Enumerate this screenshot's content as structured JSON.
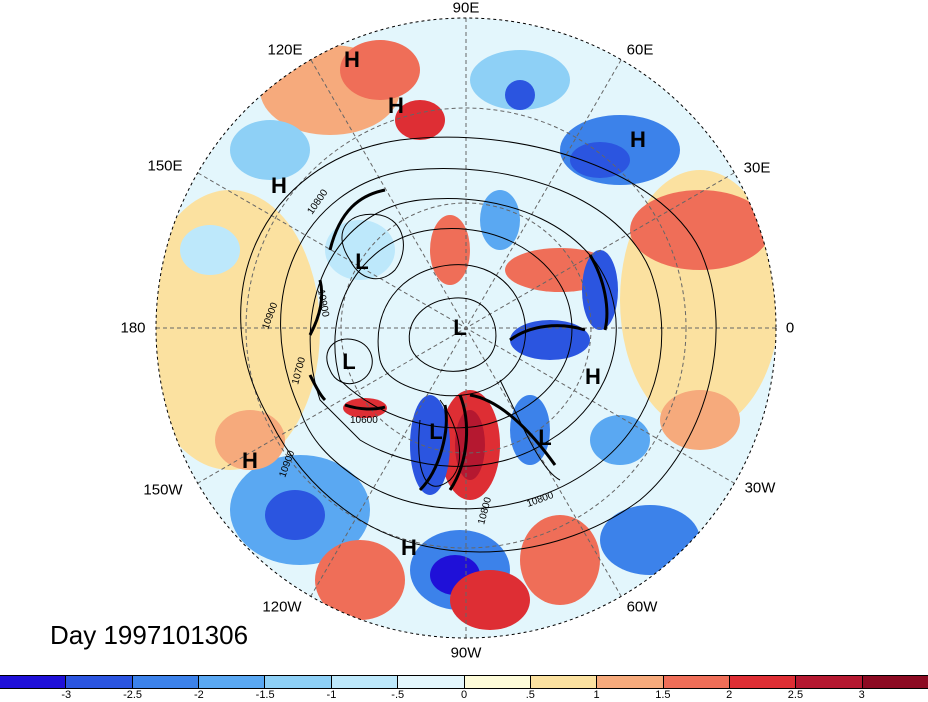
{
  "title": "Day 1997101306",
  "longitude_labels": [
    "90E",
    "60E",
    "30E",
    "0",
    "30W",
    "60W",
    "90W",
    "120W",
    "150W",
    "180",
    "150E",
    "120E"
  ],
  "pressure_systems": [
    {
      "label": "H",
      "name": "high-1"
    },
    {
      "label": "H",
      "name": "high-2"
    },
    {
      "label": "H",
      "name": "high-3"
    },
    {
      "label": "H",
      "name": "high-4"
    },
    {
      "label": "H",
      "name": "high-5"
    },
    {
      "label": "H",
      "name": "high-6"
    },
    {
      "label": "H",
      "name": "high-7"
    },
    {
      "label": "L",
      "name": "low-1"
    },
    {
      "label": "L",
      "name": "low-2"
    },
    {
      "label": "L",
      "name": "low-3"
    },
    {
      "label": "L",
      "name": "low-4"
    },
    {
      "label": "L",
      "name": "low-5"
    }
  ],
  "contour_labels": [
    "10800",
    "10900",
    "10900",
    "10700",
    "10600",
    "10900",
    "10800",
    "10800"
  ],
  "colorbar": {
    "ticks": [
      "-3",
      "-2.5",
      "-2",
      "-1.5",
      "-1",
      "-.5",
      "0",
      ".5",
      "1",
      "1.5",
      "2",
      "2.5",
      "3"
    ],
    "colors": [
      "#1f10d8",
      "#2b55e0",
      "#3c82ea",
      "#5aa8f2",
      "#8ed0f6",
      "#bde8fb",
      "#e3f6fc",
      "#fdfbd8",
      "#fbe1a0",
      "#f6aa7c",
      "#ef6e58",
      "#de2e34",
      "#b51830",
      "#8c0a22"
    ]
  },
  "field_blobs": [
    {
      "name": "red-n-europe",
      "color": "#ef6e58"
    },
    {
      "name": "blue-scandinavia",
      "color": "#3c82ea"
    },
    {
      "name": "red-n-america",
      "color": "#de2e34"
    },
    {
      "name": "blue-hudson",
      "color": "#2b55e0"
    }
  ]
}
